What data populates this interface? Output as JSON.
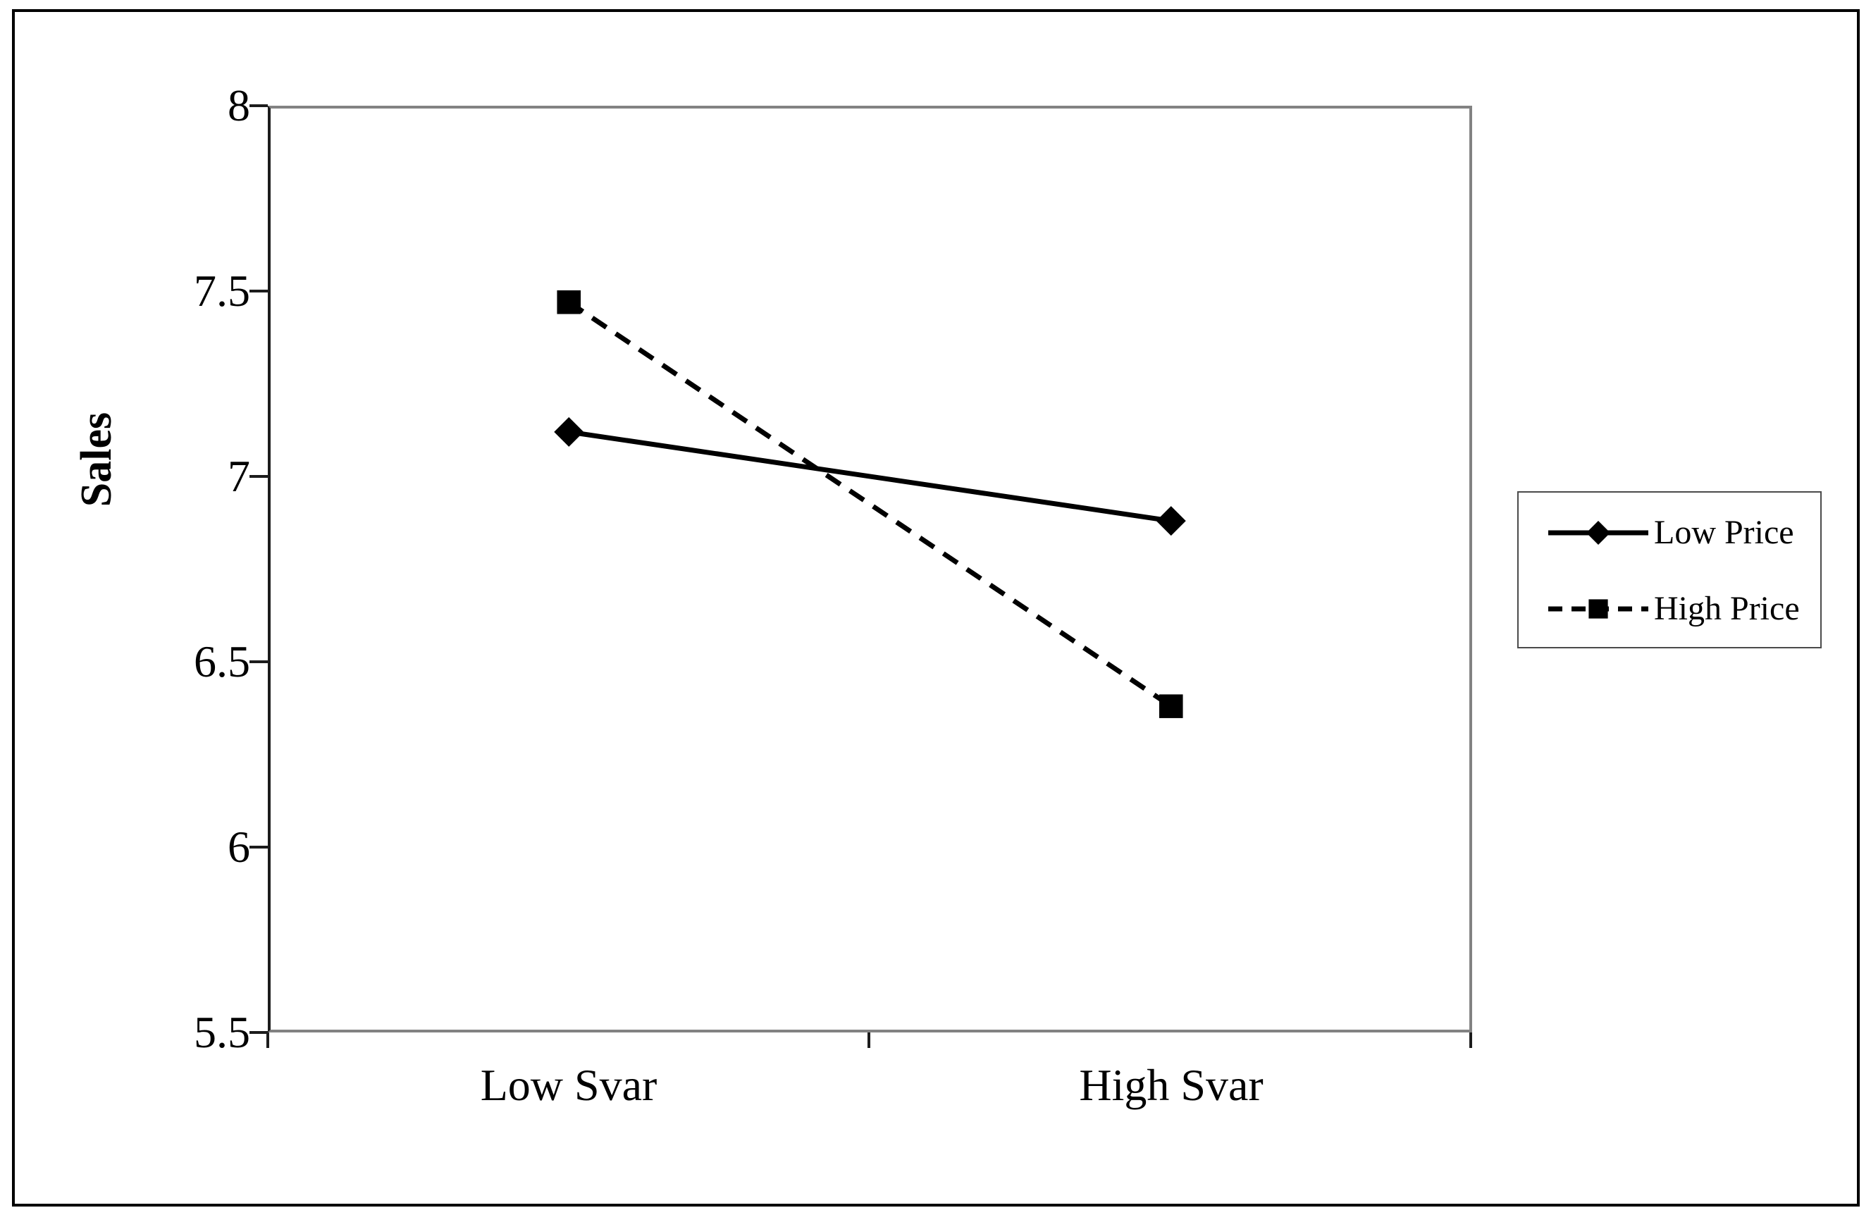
{
  "chart_data": {
    "type": "line",
    "title": "",
    "xlabel": "",
    "ylabel": "Sales",
    "categories": [
      "Low Svar",
      "High Svar"
    ],
    "series": [
      {
        "name": "Low Price",
        "values": [
          7.12,
          6.88
        ],
        "line_style": "solid",
        "marker": "diamond",
        "color": "#000000"
      },
      {
        "name": "High Price",
        "values": [
          7.47,
          6.38
        ],
        "line_style": "dashed",
        "marker": "square",
        "color": "#000000"
      }
    ],
    "ylim": [
      5.5,
      8
    ],
    "ytick_step": 0.5,
    "y_tick_labels": [
      "8",
      "7.5",
      "7",
      "6.5",
      "6",
      "5.5"
    ],
    "grid": false,
    "legend_position": "right"
  },
  "colors": {
    "series_line": "#000000",
    "plot_border": "#828282",
    "axis_line": "#1c1c1c",
    "legend_border": "#4a4a4a",
    "outer_border": "#000000",
    "background": "#ffffff"
  }
}
